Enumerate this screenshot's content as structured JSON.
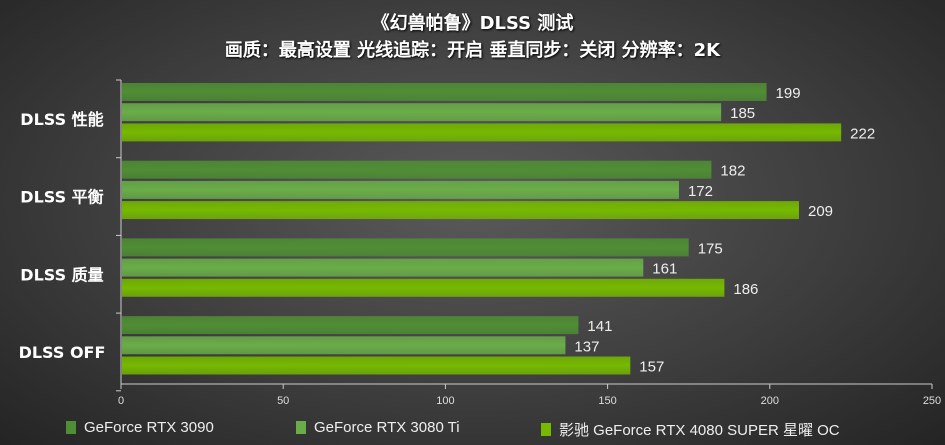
{
  "chart_data": {
    "type": "bar",
    "orientation": "horizontal",
    "title": "《幻兽帕鲁》DLSS 测试",
    "subtitle": "画质：最高设置 光线追踪：开启 垂直同步：关闭 分辨率：2K",
    "categories": [
      "DLSS 性能",
      "DLSS 平衡",
      "DLSS 质量",
      "DLSS  OFF"
    ],
    "series": [
      {
        "name": "GeForce RTX 3090",
        "color": "#4f8e34",
        "values": [
          199,
          182,
          175,
          141
        ]
      },
      {
        "name": "GeForce RTX 3080 Ti",
        "color": "#6aad48",
        "values": [
          185,
          172,
          161,
          137
        ]
      },
      {
        "name": "影驰 GeForce RTX 4080 SUPER 星曜 OC",
        "color": "#76b900",
        "values": [
          222,
          209,
          186,
          157
        ]
      }
    ],
    "xlim": [
      0,
      250
    ],
    "xticks": [
      0,
      50,
      100,
      150,
      200,
      250
    ],
    "grid": false,
    "legend": "bottom",
    "xlabel": "",
    "ylabel": ""
  }
}
